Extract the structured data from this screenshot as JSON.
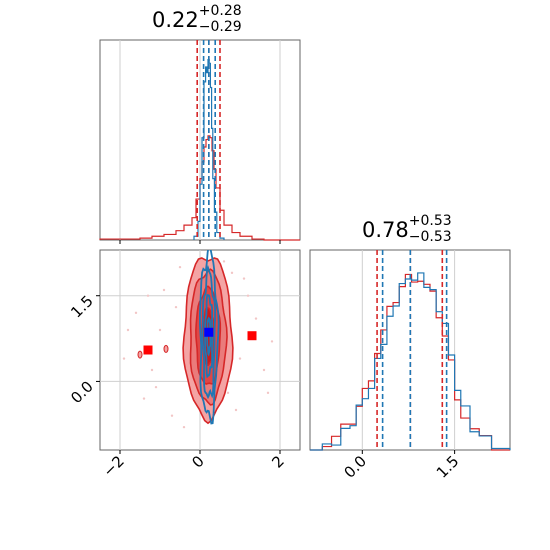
{
  "chart_data": [
    {
      "type": "histogram",
      "panel": "marginal-x",
      "title": {
        "value": "0.22",
        "plus": "+0.28",
        "minus": "−0.29"
      },
      "xlim": [
        -2.5,
        2.5
      ],
      "grid": true,
      "quantiles": {
        "red": [
          -0.07,
          0.22,
          0.5
        ],
        "blue": [
          0.09,
          0.22,
          0.38
        ]
      },
      "series": [
        {
          "color": "#d62728",
          "bin_edges": [
            -2.5,
            -1.5,
            -1.2,
            -0.9,
            -0.6,
            -0.4,
            -0.2,
            -0.1,
            0.0,
            0.05,
            0.1,
            0.15,
            0.2,
            0.25,
            0.3,
            0.35,
            0.4,
            0.5,
            0.6,
            0.8,
            1.0,
            1.3,
            1.6,
            2.5
          ],
          "counts": [
            0.005,
            0.01,
            0.02,
            0.03,
            0.05,
            0.08,
            0.12,
            0.22,
            0.33,
            0.42,
            0.5,
            0.54,
            0.56,
            0.55,
            0.48,
            0.38,
            0.28,
            0.16,
            0.08,
            0.04,
            0.02,
            0.005,
            0.0
          ]
        },
        {
          "color": "#1f77b4",
          "bin_edges": [
            -0.15,
            -0.05,
            0.0,
            0.05,
            0.1,
            0.14,
            0.17,
            0.2,
            0.23,
            0.26,
            0.29,
            0.32,
            0.36,
            0.42,
            0.5,
            0.6
          ],
          "counts": [
            0.02,
            0.1,
            0.3,
            0.55,
            0.85,
            0.93,
            0.9,
            0.97,
            0.95,
            0.82,
            0.6,
            0.33,
            0.15,
            0.04,
            0.01
          ]
        }
      ]
    },
    {
      "type": "histogram",
      "panel": "marginal-y",
      "title": {
        "value": "0.78",
        "plus": "+0.53",
        "minus": "−0.53"
      },
      "xlim": [
        -0.85,
        2.4
      ],
      "xticks": [
        "0.0",
        "1.5"
      ],
      "grid": true,
      "quantiles": {
        "red": [
          0.24,
          0.78,
          1.3
        ],
        "blue": [
          0.33,
          0.78,
          1.37
        ]
      },
      "series": [
        {
          "color": "#d62728",
          "bin_edges": [
            -0.85,
            -0.65,
            -0.5,
            -0.35,
            -0.2,
            -0.1,
            0.0,
            0.1,
            0.2,
            0.3,
            0.4,
            0.5,
            0.6,
            0.7,
            0.8,
            0.9,
            1.0,
            1.1,
            1.2,
            1.3,
            1.4,
            1.5,
            1.6,
            1.75,
            1.9,
            2.1,
            2.4
          ],
          "counts": [
            0.01,
            0.03,
            0.06,
            0.1,
            0.16,
            0.23,
            0.3,
            0.4,
            0.52,
            0.62,
            0.72,
            0.8,
            0.86,
            0.9,
            0.92,
            0.9,
            0.86,
            0.8,
            0.72,
            0.6,
            0.45,
            0.3,
            0.18,
            0.1,
            0.04,
            0.01
          ]
        },
        {
          "color": "#1f77b4",
          "bin_edges": [
            -0.85,
            -0.65,
            -0.5,
            -0.35,
            -0.2,
            -0.1,
            0.0,
            0.1,
            0.2,
            0.3,
            0.4,
            0.5,
            0.6,
            0.7,
            0.8,
            0.9,
            1.0,
            1.1,
            1.2,
            1.3,
            1.4,
            1.5,
            1.6,
            1.75,
            1.9,
            2.1,
            2.4
          ],
          "counts": [
            0.01,
            0.02,
            0.05,
            0.09,
            0.14,
            0.2,
            0.27,
            0.36,
            0.47,
            0.58,
            0.68,
            0.77,
            0.84,
            0.9,
            0.93,
            0.92,
            0.88,
            0.82,
            0.74,
            0.63,
            0.5,
            0.35,
            0.22,
            0.12,
            0.05,
            0.02
          ]
        }
      ]
    },
    {
      "type": "contour",
      "panel": "joint",
      "xlim": [
        -2.5,
        2.5
      ],
      "ylim": [
        -1.2,
        2.3
      ],
      "xticks": [
        "−2",
        "0",
        "2"
      ],
      "yticks": [
        "0.0",
        "1.5"
      ],
      "grid": true,
      "series": [
        {
          "color": "#d62728",
          "filled": true,
          "center": [
            0.2,
            0.78
          ],
          "levels": [
            {
              "sx": 0.6,
              "sy": 1.42,
              "fill": "#f4a4a4"
            },
            {
              "sx": 0.45,
              "sy": 1.15,
              "fill": "#ea7b7b"
            },
            {
              "sx": 0.3,
              "sy": 0.85,
              "fill": "#df4646"
            },
            {
              "sx": 0.15,
              "sy": 0.5,
              "fill": "#cc1b1b"
            }
          ]
        },
        {
          "color": "#1f77b4",
          "filled": false,
          "center": [
            0.22,
            0.8
          ],
          "levels": [
            {
              "sx": 0.22,
              "sy": 1.45
            },
            {
              "sx": 0.15,
              "sy": 1.1
            },
            {
              "sx": 0.09,
              "sy": 0.7
            },
            {
              "sx": 0.04,
              "sy": 0.3
            }
          ]
        }
      ],
      "markers": [
        {
          "x": -1.3,
          "y": 0.55,
          "color": "#ff0000",
          "shape": "square"
        },
        {
          "x": 1.3,
          "y": 0.8,
          "color": "#ff0000",
          "shape": "square"
        },
        {
          "x": 0.22,
          "y": 0.86,
          "color": "#0000ff",
          "shape": "square"
        }
      ],
      "small_blobs": [
        {
          "x": -0.85,
          "y": 0.57,
          "color": "#d62728"
        },
        {
          "x": -1.5,
          "y": 0.47,
          "color": "#d62728"
        }
      ],
      "scatter_points": [
        [
          -1.6,
          1.2
        ],
        [
          -1.2,
          0.2
        ],
        [
          -0.9,
          1.6
        ],
        [
          -1.8,
          0.9
        ],
        [
          -1.4,
          -0.3
        ],
        [
          1.2,
          1.5
        ],
        [
          1.6,
          0.2
        ],
        [
          0.9,
          -0.5
        ],
        [
          1.4,
          1.1
        ],
        [
          -0.7,
          -0.6
        ],
        [
          -1.0,
          0.9
        ],
        [
          1.0,
          0.4
        ],
        [
          0.8,
          1.9
        ],
        [
          -0.5,
          2.0
        ],
        [
          1.8,
          0.7
        ],
        [
          -1.9,
          0.4
        ],
        [
          1.7,
          -0.2
        ],
        [
          -0.6,
          1.3
        ],
        [
          0.7,
          -0.2
        ],
        [
          -1.1,
          -0.1
        ],
        [
          1.1,
          1.8
        ],
        [
          -1.3,
          1.5
        ],
        [
          0.6,
          2.1
        ],
        [
          -0.4,
          -0.8
        ]
      ]
    }
  ]
}
